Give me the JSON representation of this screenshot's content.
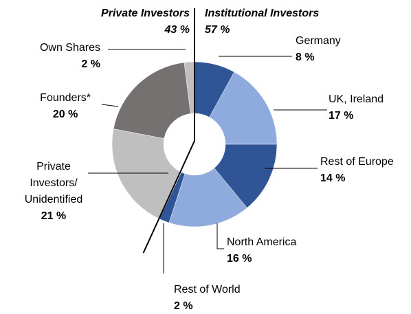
{
  "chart_data": {
    "type": "donut",
    "categories": [
      "Germany",
      "UK, Ireland",
      "Rest of Europe",
      "North America",
      "Rest of World",
      "Private Investors/ Unidentified",
      "Founders*",
      "Own Shares"
    ],
    "values": [
      8,
      17,
      14,
      16,
      2,
      21,
      20,
      2
    ],
    "value_labels": [
      "8 %",
      "17 %",
      "14 %",
      "16 %",
      "2 %",
      "21 %",
      "20 %",
      "2 %"
    ],
    "colors": [
      "#2f5597",
      "#8faadc",
      "#2f5597",
      "#8faadc",
      "#2f5597",
      "#bfbfbf",
      "#767171",
      "#bfbfbf"
    ],
    "groups": [
      {
        "name": "Institutional Investors",
        "value": 57,
        "label": "57 %"
      },
      {
        "name": "Private Investors",
        "value": 43,
        "label": "43 %"
      }
    ]
  }
}
